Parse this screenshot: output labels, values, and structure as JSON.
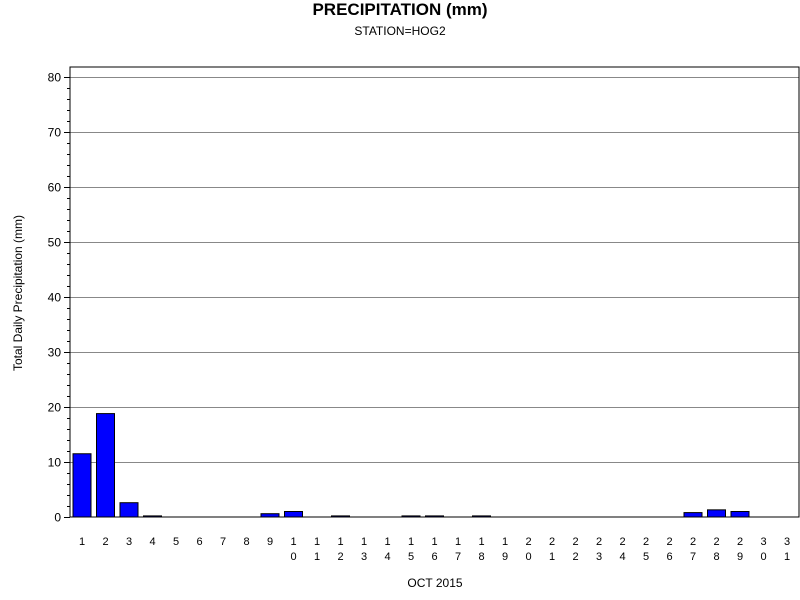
{
  "chart_data": {
    "type": "bar",
    "title": "PRECIPITATION (mm)",
    "subtitle": "STATION=HOG2",
    "xlabel": "OCT 2015",
    "ylabel": "Total Daily Precipitation (mm)",
    "ylim": [
      0,
      80
    ],
    "yticks": [
      0,
      10,
      20,
      30,
      40,
      50,
      60,
      70,
      80
    ],
    "grid": true,
    "bar_color": "#0000ff",
    "categories": [
      "1",
      "2",
      "3",
      "4",
      "5",
      "6",
      "7",
      "8",
      "9",
      "10",
      "11",
      "12",
      "13",
      "14",
      "15",
      "16",
      "17",
      "18",
      "19",
      "20",
      "21",
      "22",
      "23",
      "24",
      "25",
      "26",
      "27",
      "28",
      "29",
      "30",
      "31"
    ],
    "values": [
      11.5,
      18.8,
      2.6,
      0.2,
      0.0,
      0.0,
      0.0,
      0.0,
      0.6,
      1.0,
      0.0,
      0.2,
      0.0,
      0.0,
      0.2,
      0.2,
      0.0,
      0.2,
      0.0,
      0.0,
      0.0,
      0.0,
      0.0,
      0.0,
      0.0,
      0.0,
      0.8,
      1.3,
      1.0,
      0.0,
      0.0
    ]
  }
}
